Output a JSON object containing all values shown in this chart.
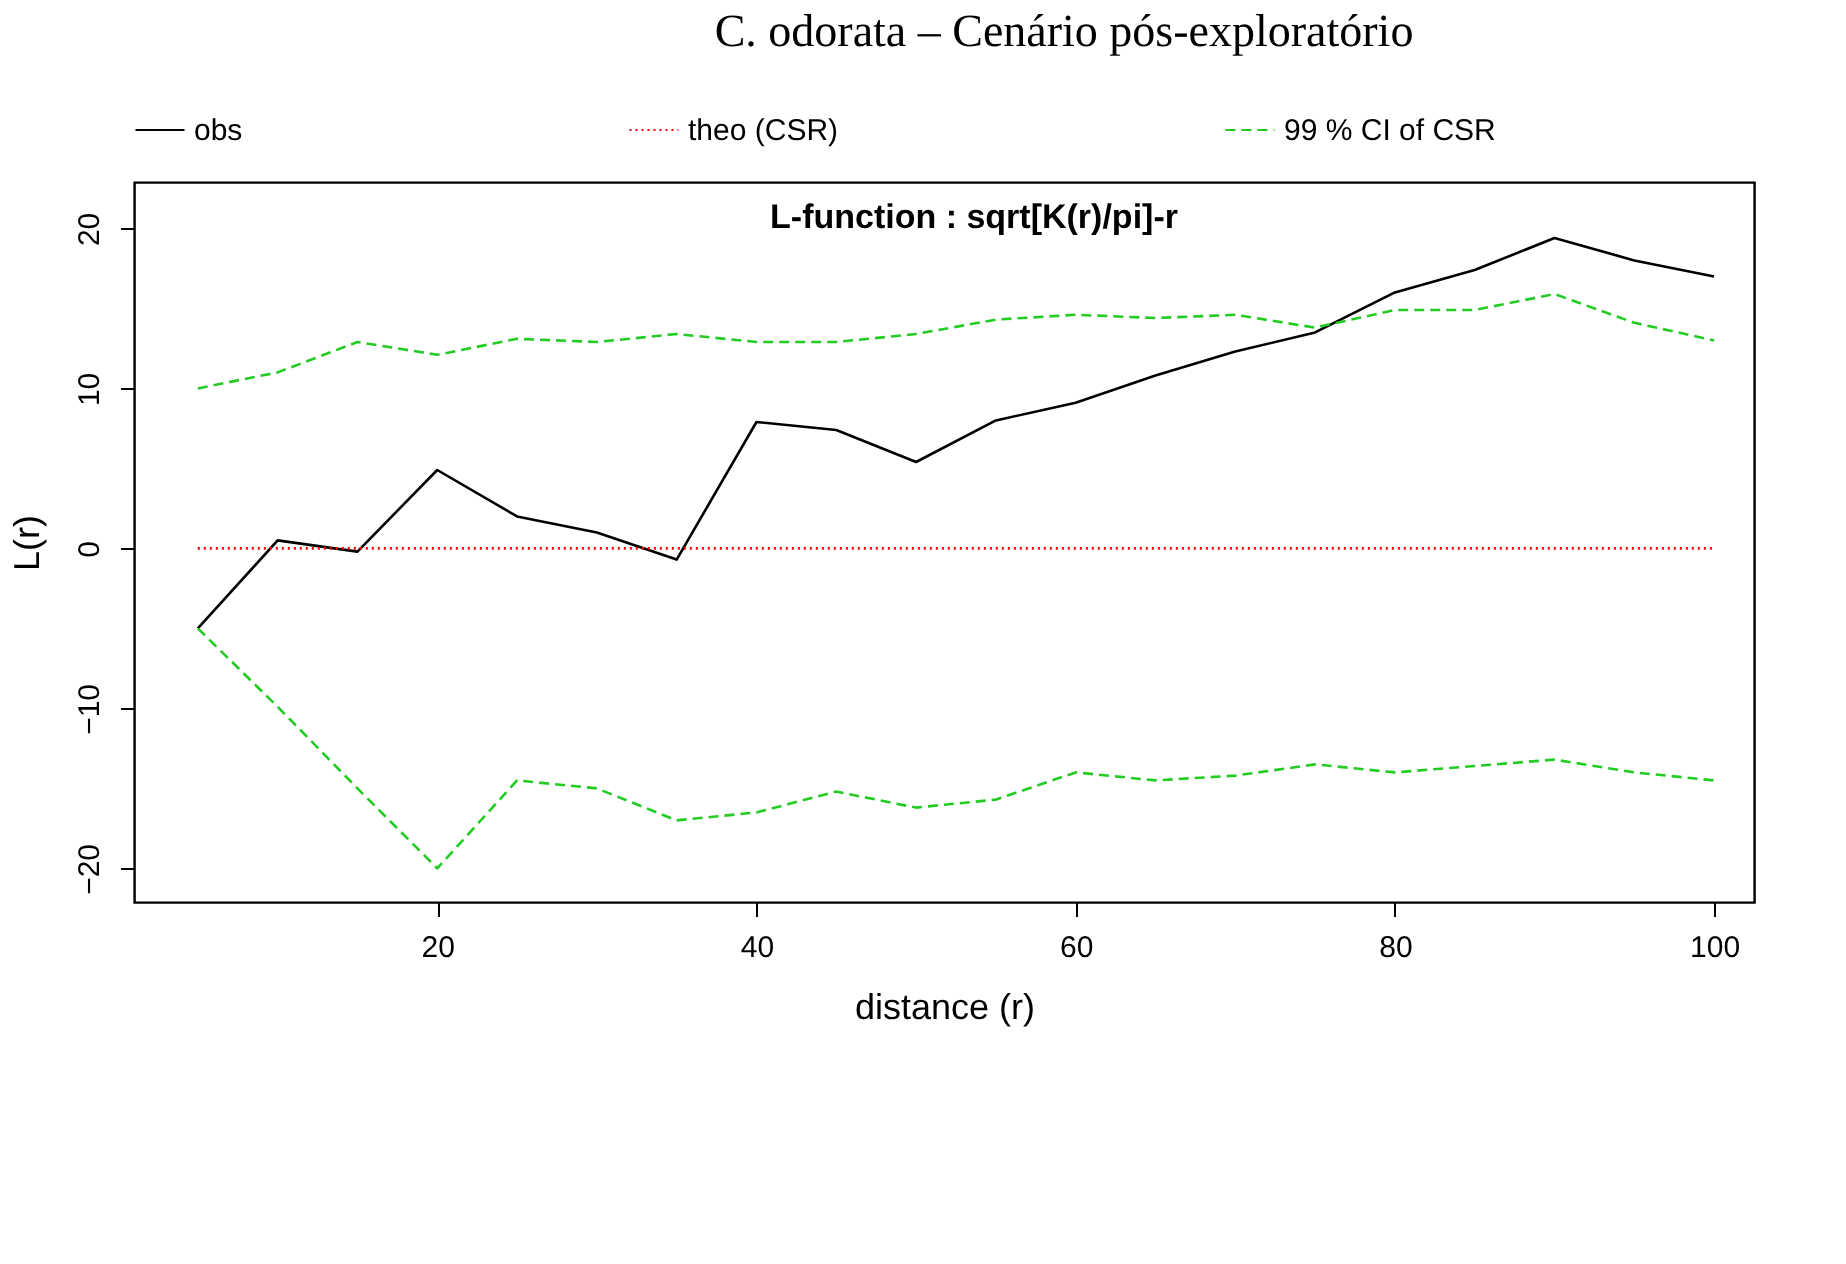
{
  "chart_data": {
    "type": "line",
    "title": "C. odorata – Cenário pós-exploratório",
    "xlabel": "distance (r)",
    "ylabel": "L(r)",
    "annotations": [
      "L-function : sqrt[K(r)/pi]-r"
    ],
    "x": [
      5,
      10,
      15,
      20,
      25,
      30,
      35,
      40,
      45,
      50,
      55,
      60,
      65,
      70,
      75,
      80,
      85,
      90,
      95,
      100
    ],
    "series": [
      {
        "name": "obs",
        "color": "#000000",
        "line_style": "solid",
        "values": [
          -5,
          0.5,
          -0.2,
          4.9,
          2,
          1,
          -0.7,
          7.9,
          7.4,
          5.4,
          8,
          9.1,
          10.8,
          12.3,
          13.5,
          16,
          17.4,
          19.4,
          18,
          17
        ]
      },
      {
        "name": "theo (CSR)",
        "color": "#ff0000",
        "line_style": "dotted",
        "values": [
          0,
          0,
          0,
          0,
          0,
          0,
          0,
          0,
          0,
          0,
          0,
          0,
          0,
          0,
          0,
          0,
          0,
          0,
          0,
          0
        ]
      },
      {
        "name": "99 % CI of CSR",
        "color": "#22cc22",
        "line_style": "dashed",
        "values": [
          10,
          11,
          12.9,
          12.1,
          13.1,
          12.9,
          13.4,
          12.9,
          12.9,
          13.4,
          14.3,
          14.6,
          14.4,
          14.6,
          13.8,
          14.9,
          14.9,
          15.9,
          14.1,
          13
        ]
      },
      {
        "color": "#22cc22",
        "line_style": "dashed",
        "values": [
          -5,
          -9.9,
          -15,
          -20,
          -14.5,
          -15,
          -17,
          -16.5,
          -15.2,
          -16.2,
          -15.7,
          -14,
          -14.5,
          -14.2,
          -13.5,
          -14,
          -13.6,
          -13.2,
          -14,
          -14.5
        ]
      }
    ],
    "xlim": [
      1,
      102.5
    ],
    "xticks": [
      20,
      40,
      60,
      80,
      100
    ],
    "ylim": [
      -22.1,
      22.9
    ],
    "yticks": [
      -20,
      -10,
      0,
      10,
      20
    ],
    "grid": false,
    "legend": "top",
    "marker": "none"
  }
}
